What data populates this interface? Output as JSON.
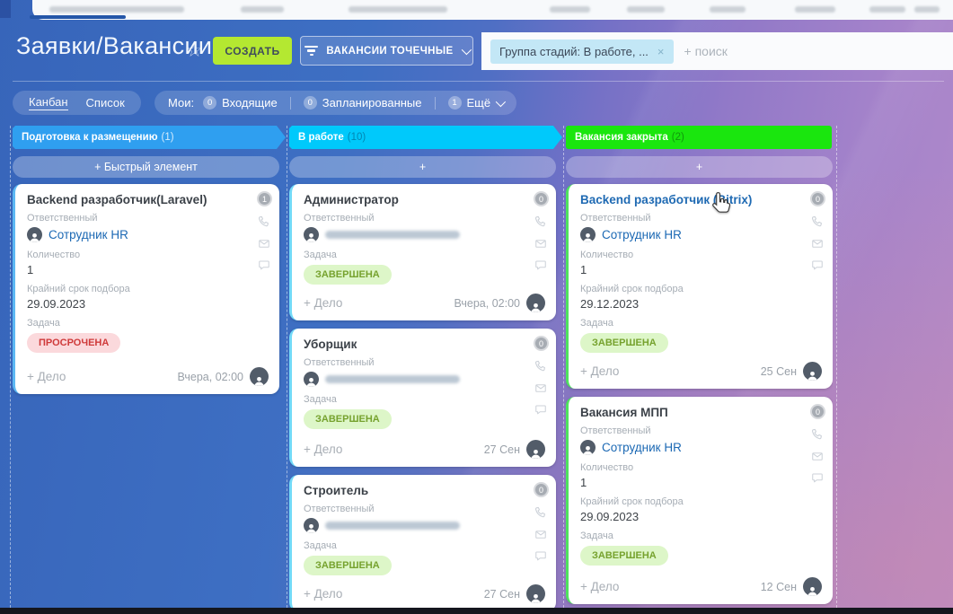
{
  "header": {
    "title": "Заявки/Вакансии",
    "favorite_icon": "☆",
    "create_button": "СОЗДАТЬ",
    "filter_button": "ВАКАНСИИ ТОЧЕЧНЫЕ",
    "search": {
      "chip": "Группа стадий: В работе, ...",
      "chip_close": "×",
      "placeholder": "+ поиск"
    }
  },
  "tabs": {
    "kanban": "Канбан",
    "list": "Список",
    "my": "Мои:",
    "counters": [
      {
        "count": "0",
        "label": "Входящие"
      },
      {
        "count": "0",
        "label": "Запланированные"
      },
      {
        "count": "1",
        "label": "Ещё",
        "chevron": true
      }
    ]
  },
  "labels": {
    "responsible": "Ответственный",
    "task": "Задача",
    "add_deal": "+ Дело"
  },
  "board": {
    "columns": [
      {
        "title": "Подготовка к размещению",
        "count_label": "(1)",
        "header_color": "#2f9ff0",
        "count_color": "rgba(255,255,255,0.8)",
        "accent": "#5cb8f3",
        "arrow": true,
        "quick_add": "+ Быстрый элемент",
        "cards": [
          {
            "title": "Backend разработчик(Laravel)",
            "badge": "1",
            "responsible": {
              "name": "Сотрудник HR"
            },
            "fields": [
              {
                "label": "Количество",
                "value": "1"
              },
              {
                "label": "Крайний срок подбора",
                "value": "29.09.2023"
              }
            ],
            "task": {
              "label": "ПРОСРОЧЕНА",
              "type": "overdue"
            },
            "date": "Вчера, 02:00"
          }
        ]
      },
      {
        "title": "В работе",
        "count_label": "(10)",
        "header_color": "#00c9fb",
        "count_color": "rgba(0,80,120,0.55)",
        "accent": "#72daf8",
        "arrow": true,
        "quick_add": "+",
        "cards": [
          {
            "title": "Администратор",
            "badge": "0",
            "responsible": {
              "blurred": true
            },
            "fields": [],
            "task": {
              "label": "ЗАВЕРШЕНА",
              "type": "done"
            },
            "date": "Вчера, 02:00"
          },
          {
            "title": "Уборщик",
            "badge": "0",
            "responsible": {
              "blurred": true
            },
            "fields": [],
            "task": {
              "label": "ЗАВЕРШЕНА",
              "type": "done"
            },
            "date": "27 Сен"
          },
          {
            "title": "Строитель",
            "badge": "0",
            "responsible": {
              "blurred": true
            },
            "fields": [],
            "task": {
              "label": "ЗАВЕРШЕНА",
              "type": "done"
            },
            "date": "27 Сен"
          }
        ]
      },
      {
        "title": "Вакансия закрыта",
        "count_label": "(2)",
        "header_color": "#1ae60e",
        "count_color": "rgba(10,100,10,0.6)",
        "accent": "#4fe25f",
        "arrow": false,
        "quick_add": "+",
        "cards": [
          {
            "title": "Backend разработчик (Bitrix)",
            "title_link": true,
            "badge": "0",
            "responsible": {
              "name": "Сотрудник HR"
            },
            "fields": [
              {
                "label": "Количество",
                "value": "1"
              },
              {
                "label": "Крайний срок подбора",
                "value": "29.12.2023"
              }
            ],
            "task": {
              "label": "ЗАВЕРШЕНА",
              "type": "done"
            },
            "date": "25 Сен"
          },
          {
            "title": "Вакансия МПП",
            "badge": "0",
            "responsible": {
              "name": "Сотрудник HR"
            },
            "fields": [
              {
                "label": "Количество",
                "value": "1"
              },
              {
                "label": "Крайний срок подбора",
                "value": "29.09.2023"
              }
            ],
            "task": {
              "label": "ЗАВЕРШЕНА",
              "type": "done"
            },
            "date": "12 Сен"
          }
        ]
      }
    ]
  }
}
